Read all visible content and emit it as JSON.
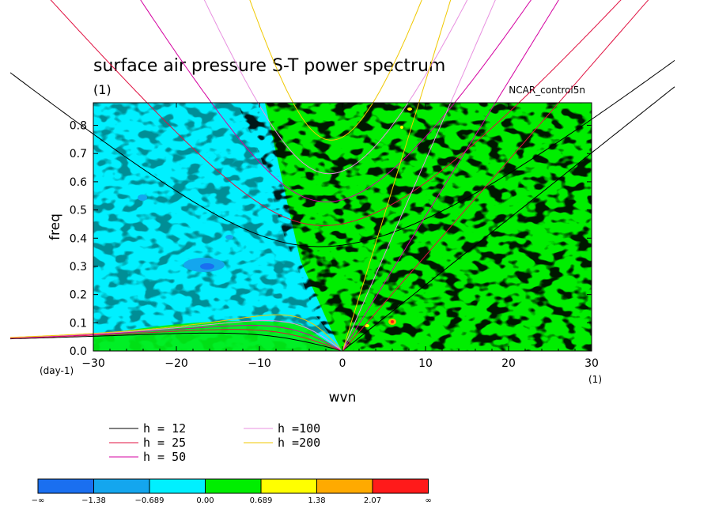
{
  "chart_data": {
    "type": "heatmap",
    "title": "surface air pressure S-T power spectrum",
    "subtitle": "(1)",
    "dataset_label": "NCAR_control5n",
    "xlabel": "wvn",
    "ylabel": "freq",
    "x_unit": "(1)",
    "y_unit": "(day-1)",
    "xlim": [
      -30,
      30
    ],
    "ylim": [
      0.0,
      0.88
    ],
    "x_ticks": [
      -30,
      -20,
      -10,
      0,
      10,
      20,
      30
    ],
    "x_tick_labels": [
      "−30",
      "−20",
      "−10",
      "0",
      "10",
      "20",
      "30"
    ],
    "y_ticks": [
      0.0,
      0.1,
      0.2,
      0.3,
      0.4,
      0.5,
      0.6,
      0.7,
      0.8
    ],
    "y_tick_labels": [
      "0.0",
      "0.1",
      "0.2",
      "0.3",
      "0.4",
      "0.5",
      "0.6",
      "0.7",
      "0.8"
    ],
    "colorbar": {
      "labels": [
        "−∞",
        "−1.38",
        "−0.689",
        "0.00",
        "0.689",
        "1.38",
        "2.07",
        "∞"
      ],
      "colors": [
        "#1a6ff0",
        "#14a6ee",
        "#00f0ff",
        "#00ee00",
        "#ffff00",
        "#ffaa00",
        "#ff1a1a"
      ]
    },
    "dispersion_curves": [
      {
        "label": "h = 12",
        "h": 12,
        "color": "#000000"
      },
      {
        "label": "h = 25",
        "h": 25,
        "color": "#e01040"
      },
      {
        "label": "h = 50",
        "h": 50,
        "color": "#d400a0"
      },
      {
        "label": "h =100",
        "h": 100,
        "color": "#e890e0"
      },
      {
        "label": "h =200",
        "h": 200,
        "color": "#f0c800"
      }
    ]
  }
}
